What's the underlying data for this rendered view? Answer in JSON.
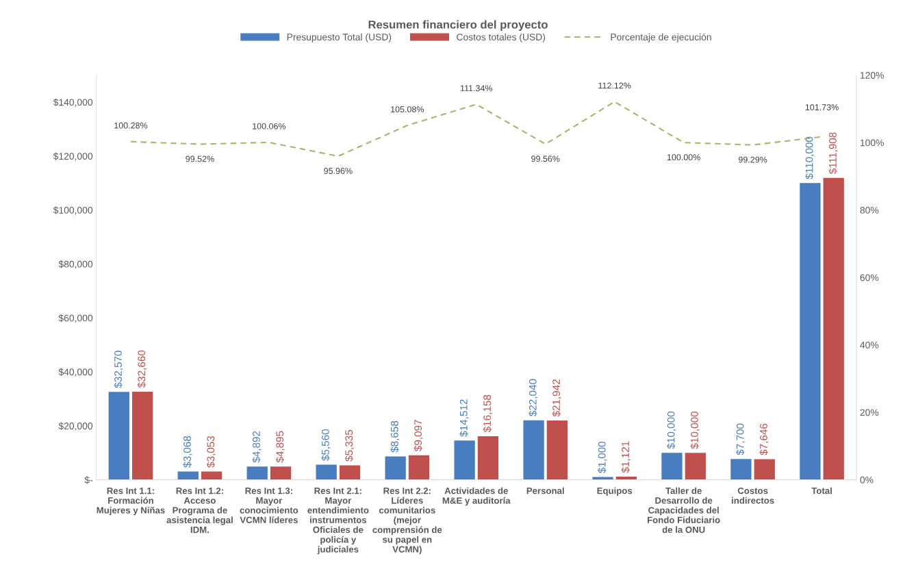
{
  "chart_data": {
    "type": "bar",
    "title": "Resumen financiero del proyecto",
    "categories": [
      "Res Int 1.1:\nFormación\nMujeres y Niñas",
      "Res Int 1.2:\nAcceso\nPrograma de\nasistencia legal\nIDM.",
      "Res Int 1.3:\nMayor\nconocimiento\nVCMN líderes",
      "Res Int 2.1:\nMayor\nentendimiento\ninstrumentos\nOficiales de\npolicía y\njudiciales",
      "Res Int 2.2:\nLíderes\ncomunitarios\n(mejor\ncomprensión de\nsu papel en\nVCMN)",
      "Actividades de\nM&E y auditoría",
      "Personal",
      "Equipos",
      "Taller de\nDesarrollo de\nCapacidades del\nFondo Fiduciario\nde la ONU",
      "Costos\nindirectos",
      "Total"
    ],
    "series": [
      {
        "name": "Presupuesto Total (USD)",
        "color": "#4a7dc0",
        "values": [
          32570,
          3068,
          4892,
          5560,
          8658,
          14512,
          22040,
          1000,
          10000,
          7700,
          110000
        ],
        "value_labels": [
          "$32,570",
          "$3,068",
          "$4,892",
          "$5,560",
          "$8,658",
          "$14,512",
          "$22,040",
          "$1,000",
          "$10,000",
          "$7,700",
          "$110,000"
        ]
      },
      {
        "name": "Costos totales (USD)",
        "color": "#c0504d",
        "values": [
          32660,
          3053,
          4895,
          5335,
          9097,
          16158,
          21942,
          1121,
          10000,
          7646,
          111908
        ],
        "value_labels": [
          "$32,660",
          "$3,053",
          "$4,895",
          "$5,335",
          "$9,097",
          "$16,158",
          "$21,942",
          "$1,121",
          "$10,000",
          "$7,646",
          "$111,908"
        ]
      },
      {
        "name": "Porcentaje de ejecución",
        "type": "line",
        "axis": "y2",
        "color": "#a8b46a",
        "line_style": "dashed",
        "values": [
          100.28,
          99.52,
          100.06,
          95.96,
          105.08,
          111.34,
          99.56,
          112.12,
          100.0,
          99.29,
          101.73
        ],
        "value_labels": [
          "100.28%",
          "99.52%",
          "100.06%",
          "95.96%",
          "105.08%",
          "111.34%",
          "99.56%",
          "112.12%",
          "100.00%",
          "99.29%",
          "101.73%"
        ]
      }
    ],
    "ylim": [
      0,
      150000
    ],
    "yticks": [
      {
        "value": 0,
        "label": "$-"
      },
      {
        "value": 20000,
        "label": "$20,000"
      },
      {
        "value": 40000,
        "label": "$40,000"
      },
      {
        "value": 60000,
        "label": "$60,000"
      },
      {
        "value": 80000,
        "label": "$80,000"
      },
      {
        "value": 100000,
        "label": "$100,000"
      },
      {
        "value": 120000,
        "label": "$120,000"
      },
      {
        "value": 140000,
        "label": "$140,000"
      }
    ],
    "y2lim": [
      0,
      120
    ],
    "y2ticks": [
      {
        "value": 0,
        "label": "0%"
      },
      {
        "value": 20,
        "label": "20%"
      },
      {
        "value": 40,
        "label": "40%"
      },
      {
        "value": 60,
        "label": "60%"
      },
      {
        "value": 80,
        "label": "80%"
      },
      {
        "value": 100,
        "label": "100%"
      },
      {
        "value": 120,
        "label": "120%"
      }
    ],
    "legend": "top",
    "grid": false
  }
}
